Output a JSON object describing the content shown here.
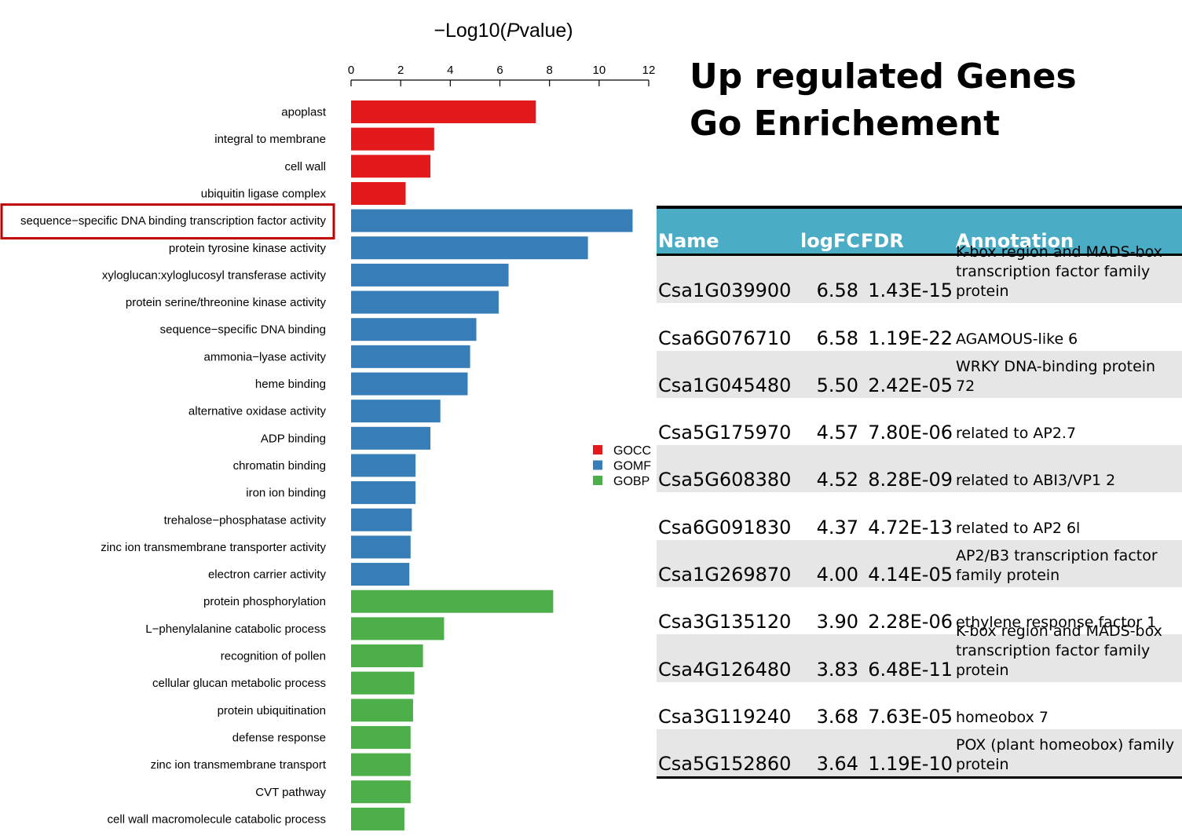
{
  "page": {
    "title": "Up regulated Genes Go Enrichement"
  },
  "chart_data": {
    "type": "bar",
    "orientation": "horizontal",
    "title": "",
    "xlabel_prefix": "−Log10(",
    "xlabel_italic": "P",
    "xlabel_suffix": "value)",
    "xlim": [
      0,
      12
    ],
    "xticks": [
      0,
      2,
      4,
      6,
      8,
      10,
      12
    ],
    "x_axis_position": "top",
    "categories": [
      "apoplast",
      "integral to membrane",
      "cell wall",
      "ubiquitin ligase complex",
      "sequence−specific DNA binding transcription factor activity",
      "protein tyrosine kinase activity",
      "xyloglucan:xyloglucosyl transferase activity",
      "protein serine/threonine kinase activity",
      "sequence−specific DNA binding",
      "ammonia−lyase activity",
      "heme binding",
      "alternative oxidase activity",
      "ADP binding",
      "chromatin binding",
      "iron ion binding",
      "trehalose−phosphatase activity",
      "zinc ion transmembrane transporter activity",
      "electron carrier activity",
      "protein phosphorylation",
      "L−phenylalanine catabolic process",
      "recognition of pollen",
      "cellular glucan metabolic process",
      "protein ubiquitination",
      "defense response",
      "zinc ion transmembrane transport",
      "CVT pathway",
      "cell wall macromolecule catabolic process"
    ],
    "values": [
      7.45,
      3.35,
      3.2,
      2.2,
      11.35,
      9.55,
      6.35,
      5.95,
      5.05,
      4.8,
      4.7,
      3.6,
      3.2,
      2.6,
      2.6,
      2.45,
      2.4,
      2.35,
      8.15,
      3.75,
      2.9,
      2.55,
      2.5,
      2.4,
      2.4,
      2.4,
      2.15
    ],
    "groups": [
      "GOCC",
      "GOCC",
      "GOCC",
      "GOCC",
      "GOMF",
      "GOMF",
      "GOMF",
      "GOMF",
      "GOMF",
      "GOMF",
      "GOMF",
      "GOMF",
      "GOMF",
      "GOMF",
      "GOMF",
      "GOMF",
      "GOMF",
      "GOMF",
      "GOBP",
      "GOBP",
      "GOBP",
      "GOBP",
      "GOBP",
      "GOBP",
      "GOBP",
      "GOBP",
      "GOBP"
    ],
    "legend": [
      {
        "name": "GOCC",
        "color": "#e31a1c"
      },
      {
        "name": "GOMF",
        "color": "#377eb8"
      },
      {
        "name": "GOBP",
        "color": "#4daf4a"
      }
    ],
    "legend_placement": "right",
    "highlighted_category_index": 4,
    "highlight_color": "#c00000",
    "grid": false
  },
  "table": {
    "headers": {
      "name": "Name",
      "logfc": "logFC",
      "fdr": "FDR",
      "annotation": "Annotation"
    },
    "header_color": "#4bacc6",
    "shade_color": "#e6e6e6",
    "rows": [
      {
        "name": "Csa1G039900",
        "logfc": "6.58",
        "fdr": "1.43E-15",
        "annotation": "K-box region and MADS-box transcription factor family protein"
      },
      {
        "name": "Csa6G076710",
        "logfc": "6.58",
        "fdr": "1.19E-22",
        "annotation": "AGAMOUS-like 6"
      },
      {
        "name": "Csa1G045480",
        "logfc": "5.50",
        "fdr": "2.42E-05",
        "annotation": "WRKY DNA-binding protein 72"
      },
      {
        "name": "Csa5G175970",
        "logfc": "4.57",
        "fdr": "7.80E-06",
        "annotation": "related to AP2.7"
      },
      {
        "name": "Csa5G608380",
        "logfc": "4.52",
        "fdr": "8.28E-09",
        "annotation": "related to ABI3/VP1 2"
      },
      {
        "name": "Csa6G091830",
        "logfc": "4.37",
        "fdr": "4.72E-13",
        "annotation": "related to AP2 6l"
      },
      {
        "name": "Csa1G269870",
        "logfc": "4.00",
        "fdr": "4.14E-05",
        "annotation": "AP2/B3 transcription factor family protein"
      },
      {
        "name": "Csa3G135120",
        "logfc": "3.90",
        "fdr": "2.28E-06",
        "annotation": "ethylene response factor 1"
      },
      {
        "name": "Csa4G126480",
        "logfc": "3.83",
        "fdr": "6.48E-11",
        "annotation": "K-box region and MADS-box transcription factor family protein"
      },
      {
        "name": "Csa3G119240",
        "logfc": "3.68",
        "fdr": "7.63E-05",
        "annotation": "homeobox 7"
      },
      {
        "name": "Csa5G152860",
        "logfc": "3.64",
        "fdr": "1.19E-10",
        "annotation": "POX (plant homeobox) family protein"
      }
    ]
  }
}
